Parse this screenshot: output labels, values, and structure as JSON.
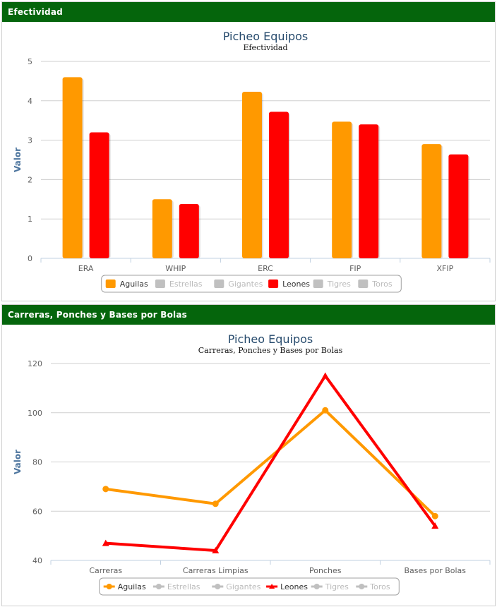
{
  "panels": [
    {
      "header": "Efectividad"
    },
    {
      "header": "Carreras, Ponches y Bases por Bolas"
    }
  ],
  "colors": {
    "aguilas": "#ff9900",
    "leones": "#ff0000",
    "hidden": "#c0c0c0",
    "header_bg": "#05650c"
  },
  "chart_data": [
    {
      "type": "bar",
      "title": "Picheo Equipos",
      "subtitle": "Efectividad",
      "ylabel": "Valor",
      "xlabel": "",
      "categories": [
        "ERA",
        "WHIP",
        "ERC",
        "FIP",
        "XFIP"
      ],
      "ylim": [
        0,
        5
      ],
      "yticks": [
        0,
        1,
        2,
        3,
        4,
        5
      ],
      "grid": true,
      "legend_position": "bottom-center",
      "legend": [
        {
          "name": "Aguilas",
          "active": true
        },
        {
          "name": "Estrellas",
          "active": false
        },
        {
          "name": "Gigantes",
          "active": false
        },
        {
          "name": "Leones",
          "active": true
        },
        {
          "name": "Tigres",
          "active": false
        },
        {
          "name": "Toros",
          "active": false
        }
      ],
      "series": [
        {
          "name": "Aguilas",
          "color": "#ff9900",
          "values": [
            4.6,
            1.5,
            4.23,
            3.47,
            2.9
          ]
        },
        {
          "name": "Leones",
          "color": "#ff0000",
          "values": [
            3.2,
            1.38,
            3.72,
            3.4,
            2.64
          ]
        }
      ]
    },
    {
      "type": "line",
      "title": "Picheo Equipos",
      "subtitle": "Carreras, Ponches y Bases por Bolas",
      "ylabel": "Valor",
      "xlabel": "",
      "categories": [
        "Carreras",
        "Carreras Limpias",
        "Ponches",
        "Bases por Bolas"
      ],
      "ylim": [
        40,
        120
      ],
      "yticks": [
        40,
        60,
        80,
        100,
        120
      ],
      "grid": true,
      "legend_position": "bottom-center",
      "legend": [
        {
          "name": "Aguilas",
          "active": true
        },
        {
          "name": "Estrellas",
          "active": false
        },
        {
          "name": "Gigantes",
          "active": false
        },
        {
          "name": "Leones",
          "active": true
        },
        {
          "name": "Tigres",
          "active": false
        },
        {
          "name": "Toros",
          "active": false
        }
      ],
      "series": [
        {
          "name": "Aguilas",
          "color": "#ff9900",
          "marker": "circle",
          "values": [
            69,
            63,
            101,
            58
          ]
        },
        {
          "name": "Leones",
          "color": "#ff0000",
          "marker": "triangle",
          "values": [
            47,
            44,
            115,
            54
          ]
        }
      ]
    }
  ]
}
